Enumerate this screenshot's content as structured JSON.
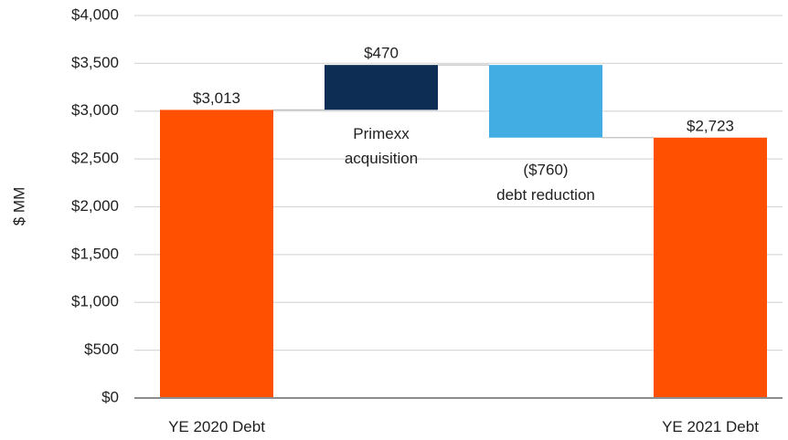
{
  "chart_data": {
    "type": "waterfall",
    "ylabel": "$ MM",
    "categories": [
      "YE 2020 Debt",
      "Primexx acquisition",
      "debt reduction",
      "YE 2021 Debt"
    ],
    "measures": [
      "absolute",
      "relative",
      "relative",
      "absolute"
    ],
    "values": [
      3013,
      470,
      -760,
      2723
    ],
    "value_labels": [
      "$3,013",
      "$470",
      "($760)",
      "$2,723"
    ],
    "colors": [
      "#ff4f00",
      "#0d2d54",
      "#41ade2",
      "#ff4f00"
    ],
    "ylim": [
      0,
      4000
    ],
    "yticks": [
      {
        "value": 0,
        "label": "$0"
      },
      {
        "value": 500,
        "label": "$500"
      },
      {
        "value": 1000,
        "label": "$1,000"
      },
      {
        "value": 1500,
        "label": "$1,500"
      },
      {
        "value": 2000,
        "label": "$2,000"
      },
      {
        "value": 2500,
        "label": "$2,500"
      },
      {
        "value": 3000,
        "label": "$3,000"
      },
      {
        "value": 3500,
        "label": "$3,500"
      },
      {
        "value": 4000,
        "label": "$4,000"
      }
    ],
    "grid": true
  }
}
